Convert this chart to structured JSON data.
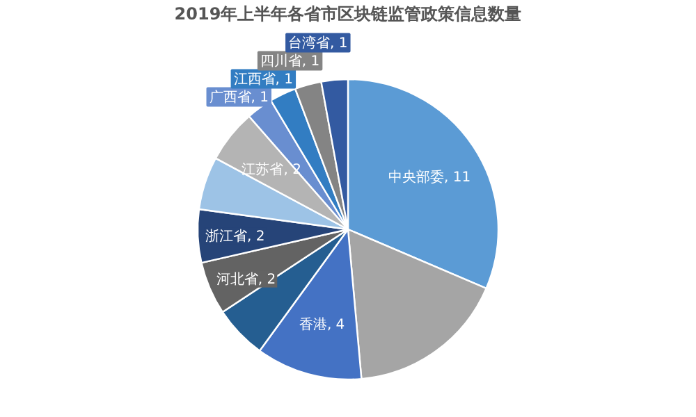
{
  "chart_data": {
    "type": "pie",
    "title": "2019年上半年各省市区块链监管政策信息数量",
    "categories": [
      "中央部委",
      null,
      "香港",
      null,
      "河北省",
      "浙江省",
      null,
      "江苏省",
      "广西省",
      "江西省",
      "四川省",
      "台湾省"
    ],
    "values": [
      11,
      6,
      4,
      2,
      2,
      2,
      2,
      2,
      1,
      1,
      1,
      1
    ],
    "value_labels": [
      "11",
      null,
      "4",
      null,
      "2",
      "2",
      null,
      "2",
      "1",
      "1",
      "1",
      "1"
    ],
    "colors": [
      "#5b9bd5",
      "#a5a5a5",
      "#4472c4",
      "#255e91",
      "#636363",
      "#264478",
      "#9dc3e6",
      "#b4b4b4",
      "#698ed0",
      "#327dc2",
      "#848484",
      "#335aa1"
    ]
  }
}
